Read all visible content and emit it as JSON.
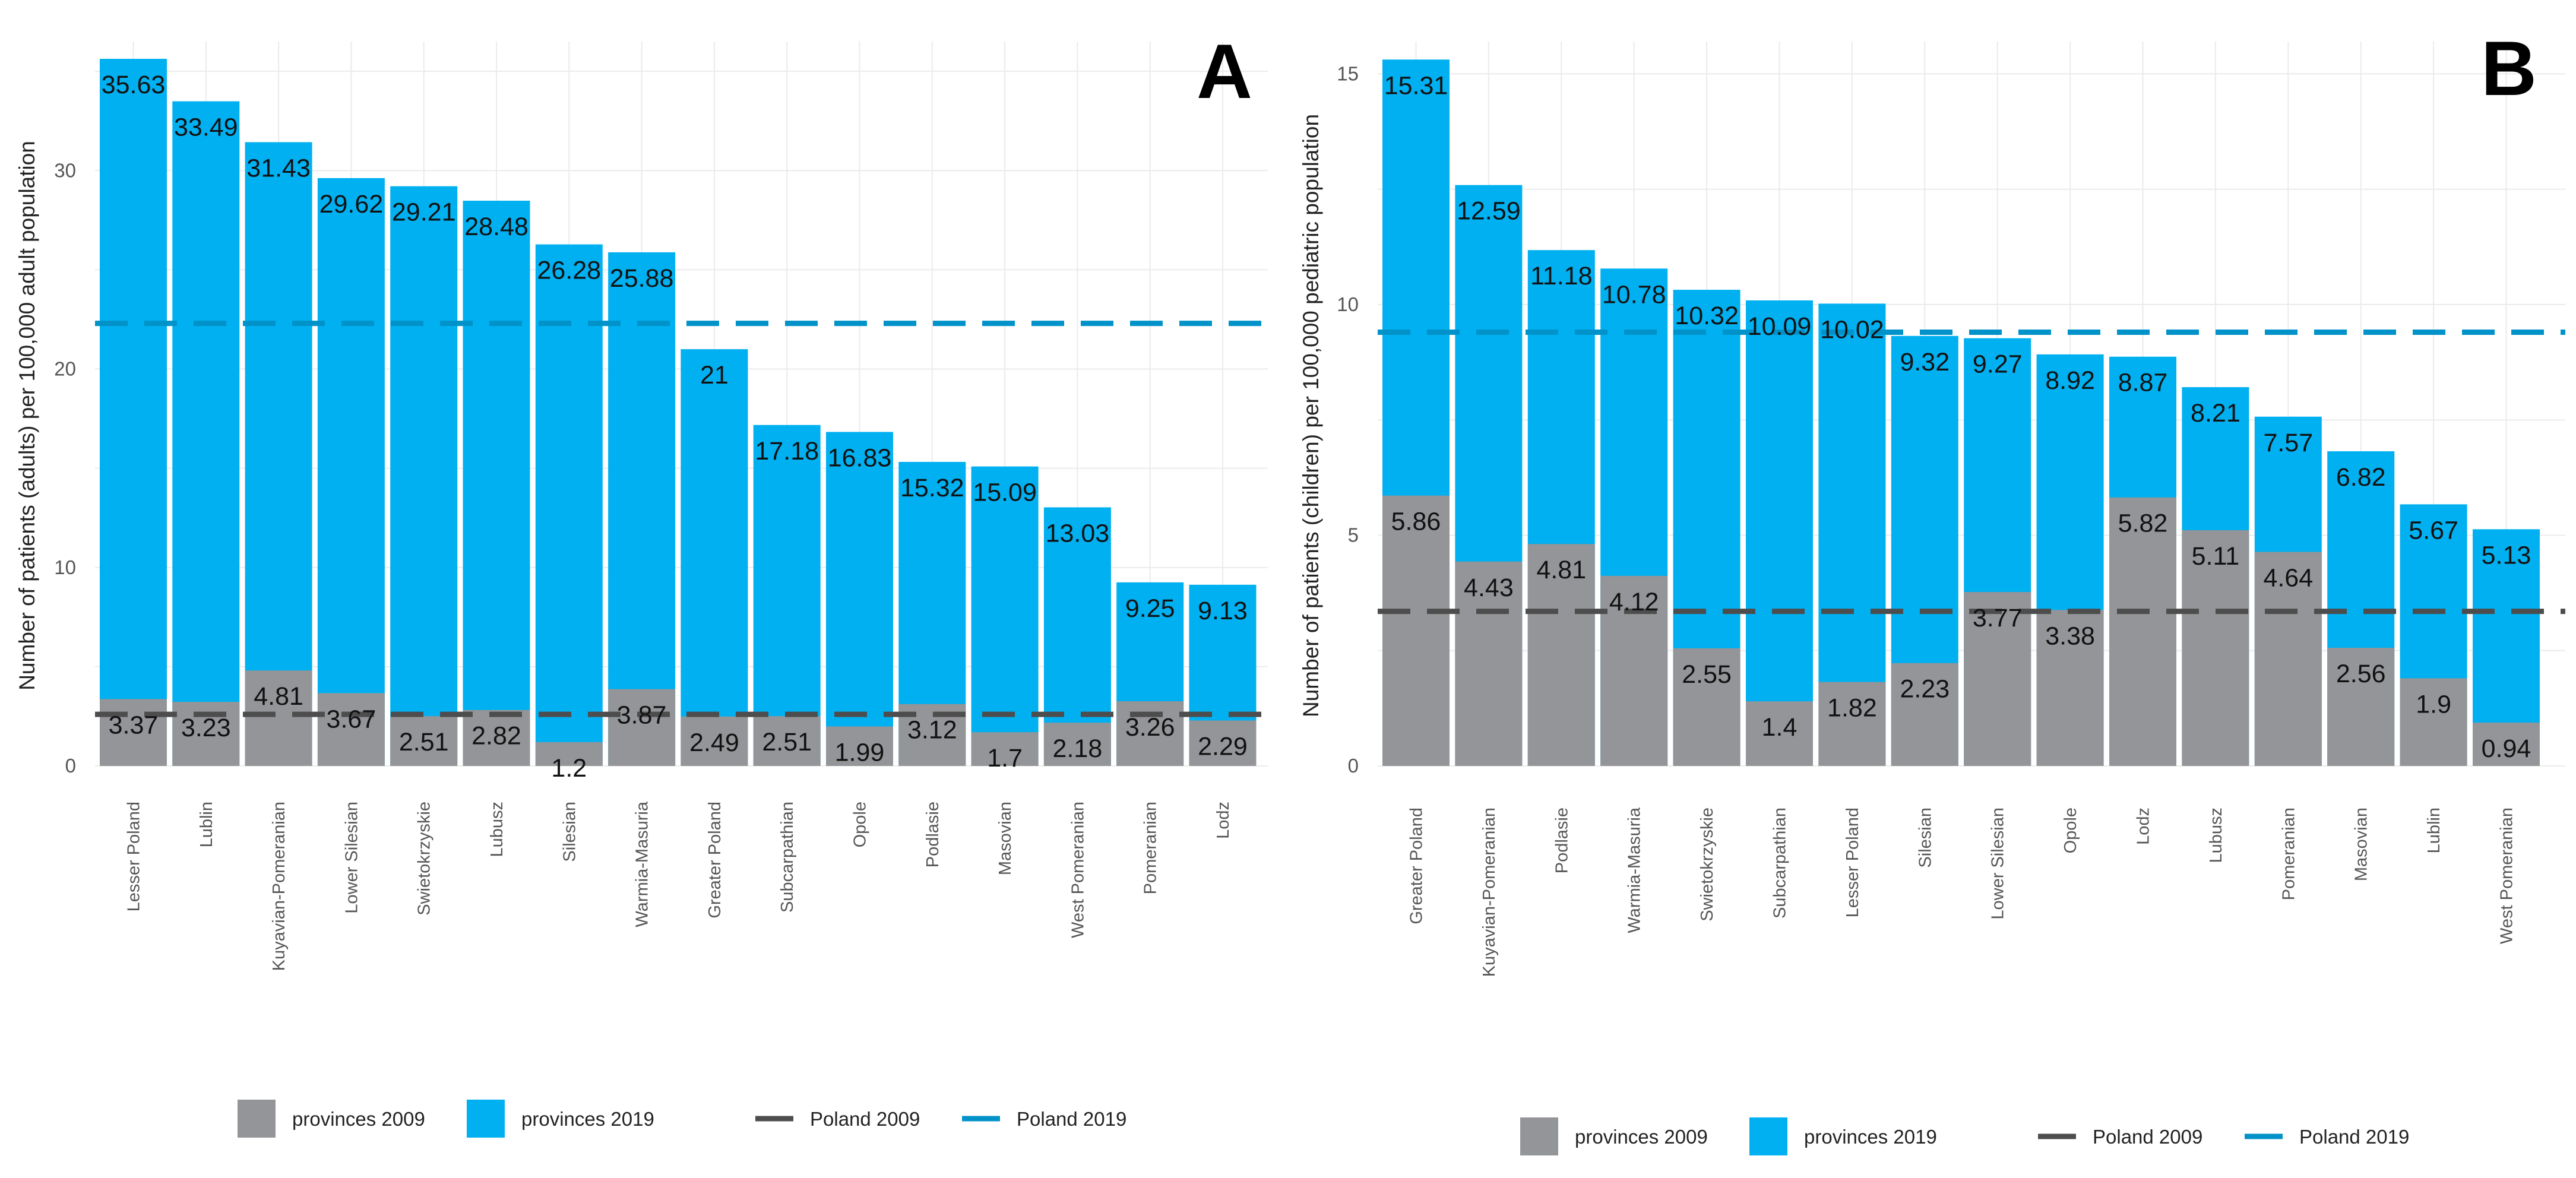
{
  "colors": {
    "provinces_2009": "#939598",
    "provinces_2019": "#00b0f0",
    "poland_2009": "#4d4d4d",
    "poland_2019": "#0092c8",
    "grid": "#ebebeb"
  },
  "legend": {
    "p2009": "provinces 2009",
    "p2019": "provinces 2019",
    "pl2009": "Poland 2009",
    "pl2019": "Poland 2019"
  },
  "chart_data": [
    {
      "type": "bar",
      "panel": "A",
      "ylabel": "Number of patients (adults) per 100,000 adult population",
      "ylim": [
        0,
        36.5
      ],
      "yticks": [
        0,
        10,
        20,
        30
      ],
      "grid": true,
      "legend_position": "bottom",
      "categories": [
        "Lesser Poland",
        "Lublin",
        "Kuyavian-Pomeranian",
        "Lower Silesian",
        "Swietokrzyskie",
        "Lubusz",
        "Silesian",
        "Warmia-Masuria",
        "Greater Poland",
        "Subcarpathian",
        "Opole",
        "Podlasie",
        "Masovian",
        "West Pomeranian",
        "Pomeranian",
        "Lodz"
      ],
      "series": [
        {
          "name": "provinces 2009",
          "values": [
            3.37,
            3.23,
            4.81,
            3.67,
            2.51,
            2.82,
            1.2,
            3.87,
            2.49,
            2.51,
            1.99,
            3.12,
            1.7,
            2.18,
            3.26,
            2.29
          ]
        },
        {
          "name": "provinces 2019",
          "values": [
            35.63,
            33.49,
            31.43,
            29.62,
            29.21,
            28.48,
            26.28,
            25.88,
            21,
            17.18,
            16.83,
            15.32,
            15.09,
            13.03,
            9.25,
            9.13
          ]
        }
      ],
      "reference_lines": [
        {
          "name": "Poland 2009",
          "value": 2.6
        },
        {
          "name": "Poland 2019",
          "value": 22.3
        }
      ]
    },
    {
      "type": "bar",
      "panel": "B",
      "ylabel": "Number of patients (children) per 100,000 pediatric population",
      "ylim": [
        0,
        15.7
      ],
      "yticks": [
        0,
        5,
        10,
        15
      ],
      "grid": true,
      "legend_position": "bottom",
      "categories": [
        "Greater Poland",
        "Kuyavian-Pomeranian",
        "Podlasie",
        "Warmia-Masuria",
        "Swietokrzyskie",
        "Subcarpathian",
        "Lesser Poland",
        "Silesian",
        "Lower Silesian",
        "Opole",
        "Lodz",
        "Lubusz",
        "Pomeranian",
        "Masovian",
        "Lublin",
        "West Pomeranian"
      ],
      "series": [
        {
          "name": "provinces 2009",
          "values": [
            5.86,
            4.43,
            4.81,
            4.12,
            2.55,
            1.4,
            1.82,
            2.23,
            3.77,
            3.38,
            5.82,
            5.11,
            4.64,
            2.56,
            1.9,
            0.94
          ]
        },
        {
          "name": "provinces 2019",
          "values": [
            15.31,
            12.59,
            11.18,
            10.78,
            10.32,
            10.09,
            10.02,
            9.32,
            9.27,
            8.92,
            8.87,
            8.21,
            7.57,
            6.82,
            5.67,
            5.13
          ]
        }
      ],
      "reference_lines": [
        {
          "name": "Poland 2009",
          "value": 3.35
        },
        {
          "name": "Poland 2019",
          "value": 9.4
        }
      ]
    }
  ]
}
